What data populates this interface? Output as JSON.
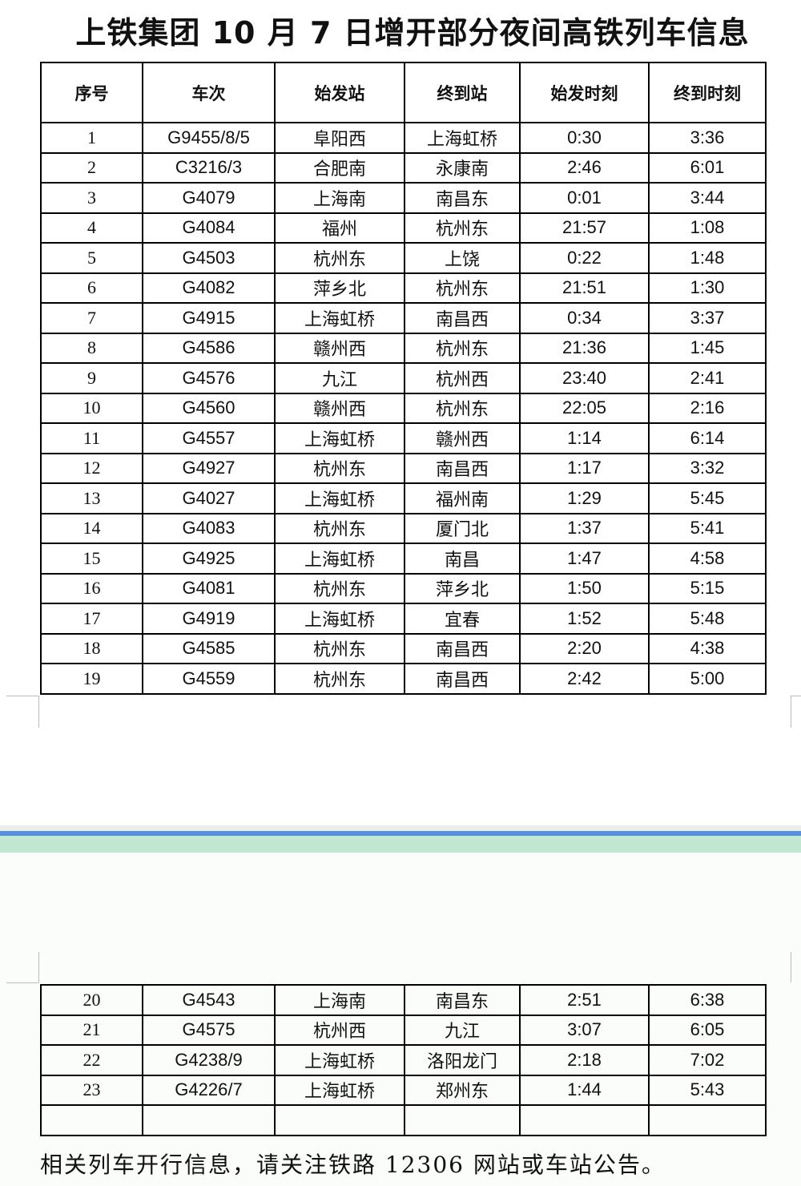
{
  "title": "上铁集团 10 月 7 日增开部分夜间高铁列车信息",
  "headers": [
    "序号",
    "车次",
    "始发站",
    "终到站",
    "始发时刻",
    "终到时刻"
  ],
  "rows_page1": [
    [
      "1",
      "G9455/8/5",
      "阜阳西",
      "上海虹桥",
      "0:30",
      "3:36"
    ],
    [
      "2",
      "C3216/3",
      "合肥南",
      "永康南",
      "2:46",
      "6:01"
    ],
    [
      "3",
      "G4079",
      "上海南",
      "南昌东",
      "0:01",
      "3:44"
    ],
    [
      "4",
      "G4084",
      "福州",
      "杭州东",
      "21:57",
      "1:08"
    ],
    [
      "5",
      "G4503",
      "杭州东",
      "上饶",
      "0:22",
      "1:48"
    ],
    [
      "6",
      "G4082",
      "萍乡北",
      "杭州东",
      "21:51",
      "1:30"
    ],
    [
      "7",
      "G4915",
      "上海虹桥",
      "南昌西",
      "0:34",
      "3:37"
    ],
    [
      "8",
      "G4586",
      "赣州西",
      "杭州东",
      "21:36",
      "1:45"
    ],
    [
      "9",
      "G4576",
      "九江",
      "杭州西",
      "23:40",
      "2:41"
    ],
    [
      "10",
      "G4560",
      "赣州西",
      "杭州东",
      "22:05",
      "2:16"
    ],
    [
      "11",
      "G4557",
      "上海虹桥",
      "赣州西",
      "1:14",
      "6:14"
    ],
    [
      "12",
      "G4927",
      "杭州东",
      "南昌西",
      "1:17",
      "3:32"
    ],
    [
      "13",
      "G4027",
      "上海虹桥",
      "福州南",
      "1:29",
      "5:45"
    ],
    [
      "14",
      "G4083",
      "杭州东",
      "厦门北",
      "1:37",
      "5:41"
    ],
    [
      "15",
      "G4925",
      "上海虹桥",
      "南昌",
      "1:47",
      "4:58"
    ],
    [
      "16",
      "G4081",
      "杭州东",
      "萍乡北",
      "1:50",
      "5:15"
    ],
    [
      "17",
      "G4919",
      "上海虹桥",
      "宜春",
      "1:52",
      "5:48"
    ],
    [
      "18",
      "G4585",
      "杭州东",
      "南昌西",
      "2:20",
      "4:38"
    ],
    [
      "19",
      "G4559",
      "杭州东",
      "南昌西",
      "2:42",
      "5:00"
    ]
  ],
  "rows_page2": [
    [
      "20",
      "G4543",
      "上海南",
      "南昌东",
      "2:51",
      "6:38"
    ],
    [
      "21",
      "G4575",
      "杭州西",
      "九江",
      "3:07",
      "6:05"
    ],
    [
      "22",
      "G4238/9",
      "上海虹桥",
      "洛阳龙门",
      "2:18",
      "7:02"
    ],
    [
      "23",
      "G4226/7",
      "上海虹桥",
      "郑州东",
      "1:44",
      "5:43"
    ],
    [
      "",
      "",
      "",
      "",
      "",
      ""
    ]
  ],
  "footnote": "相关列车开行信息，请关注铁路 12306 网站或车站公告。"
}
